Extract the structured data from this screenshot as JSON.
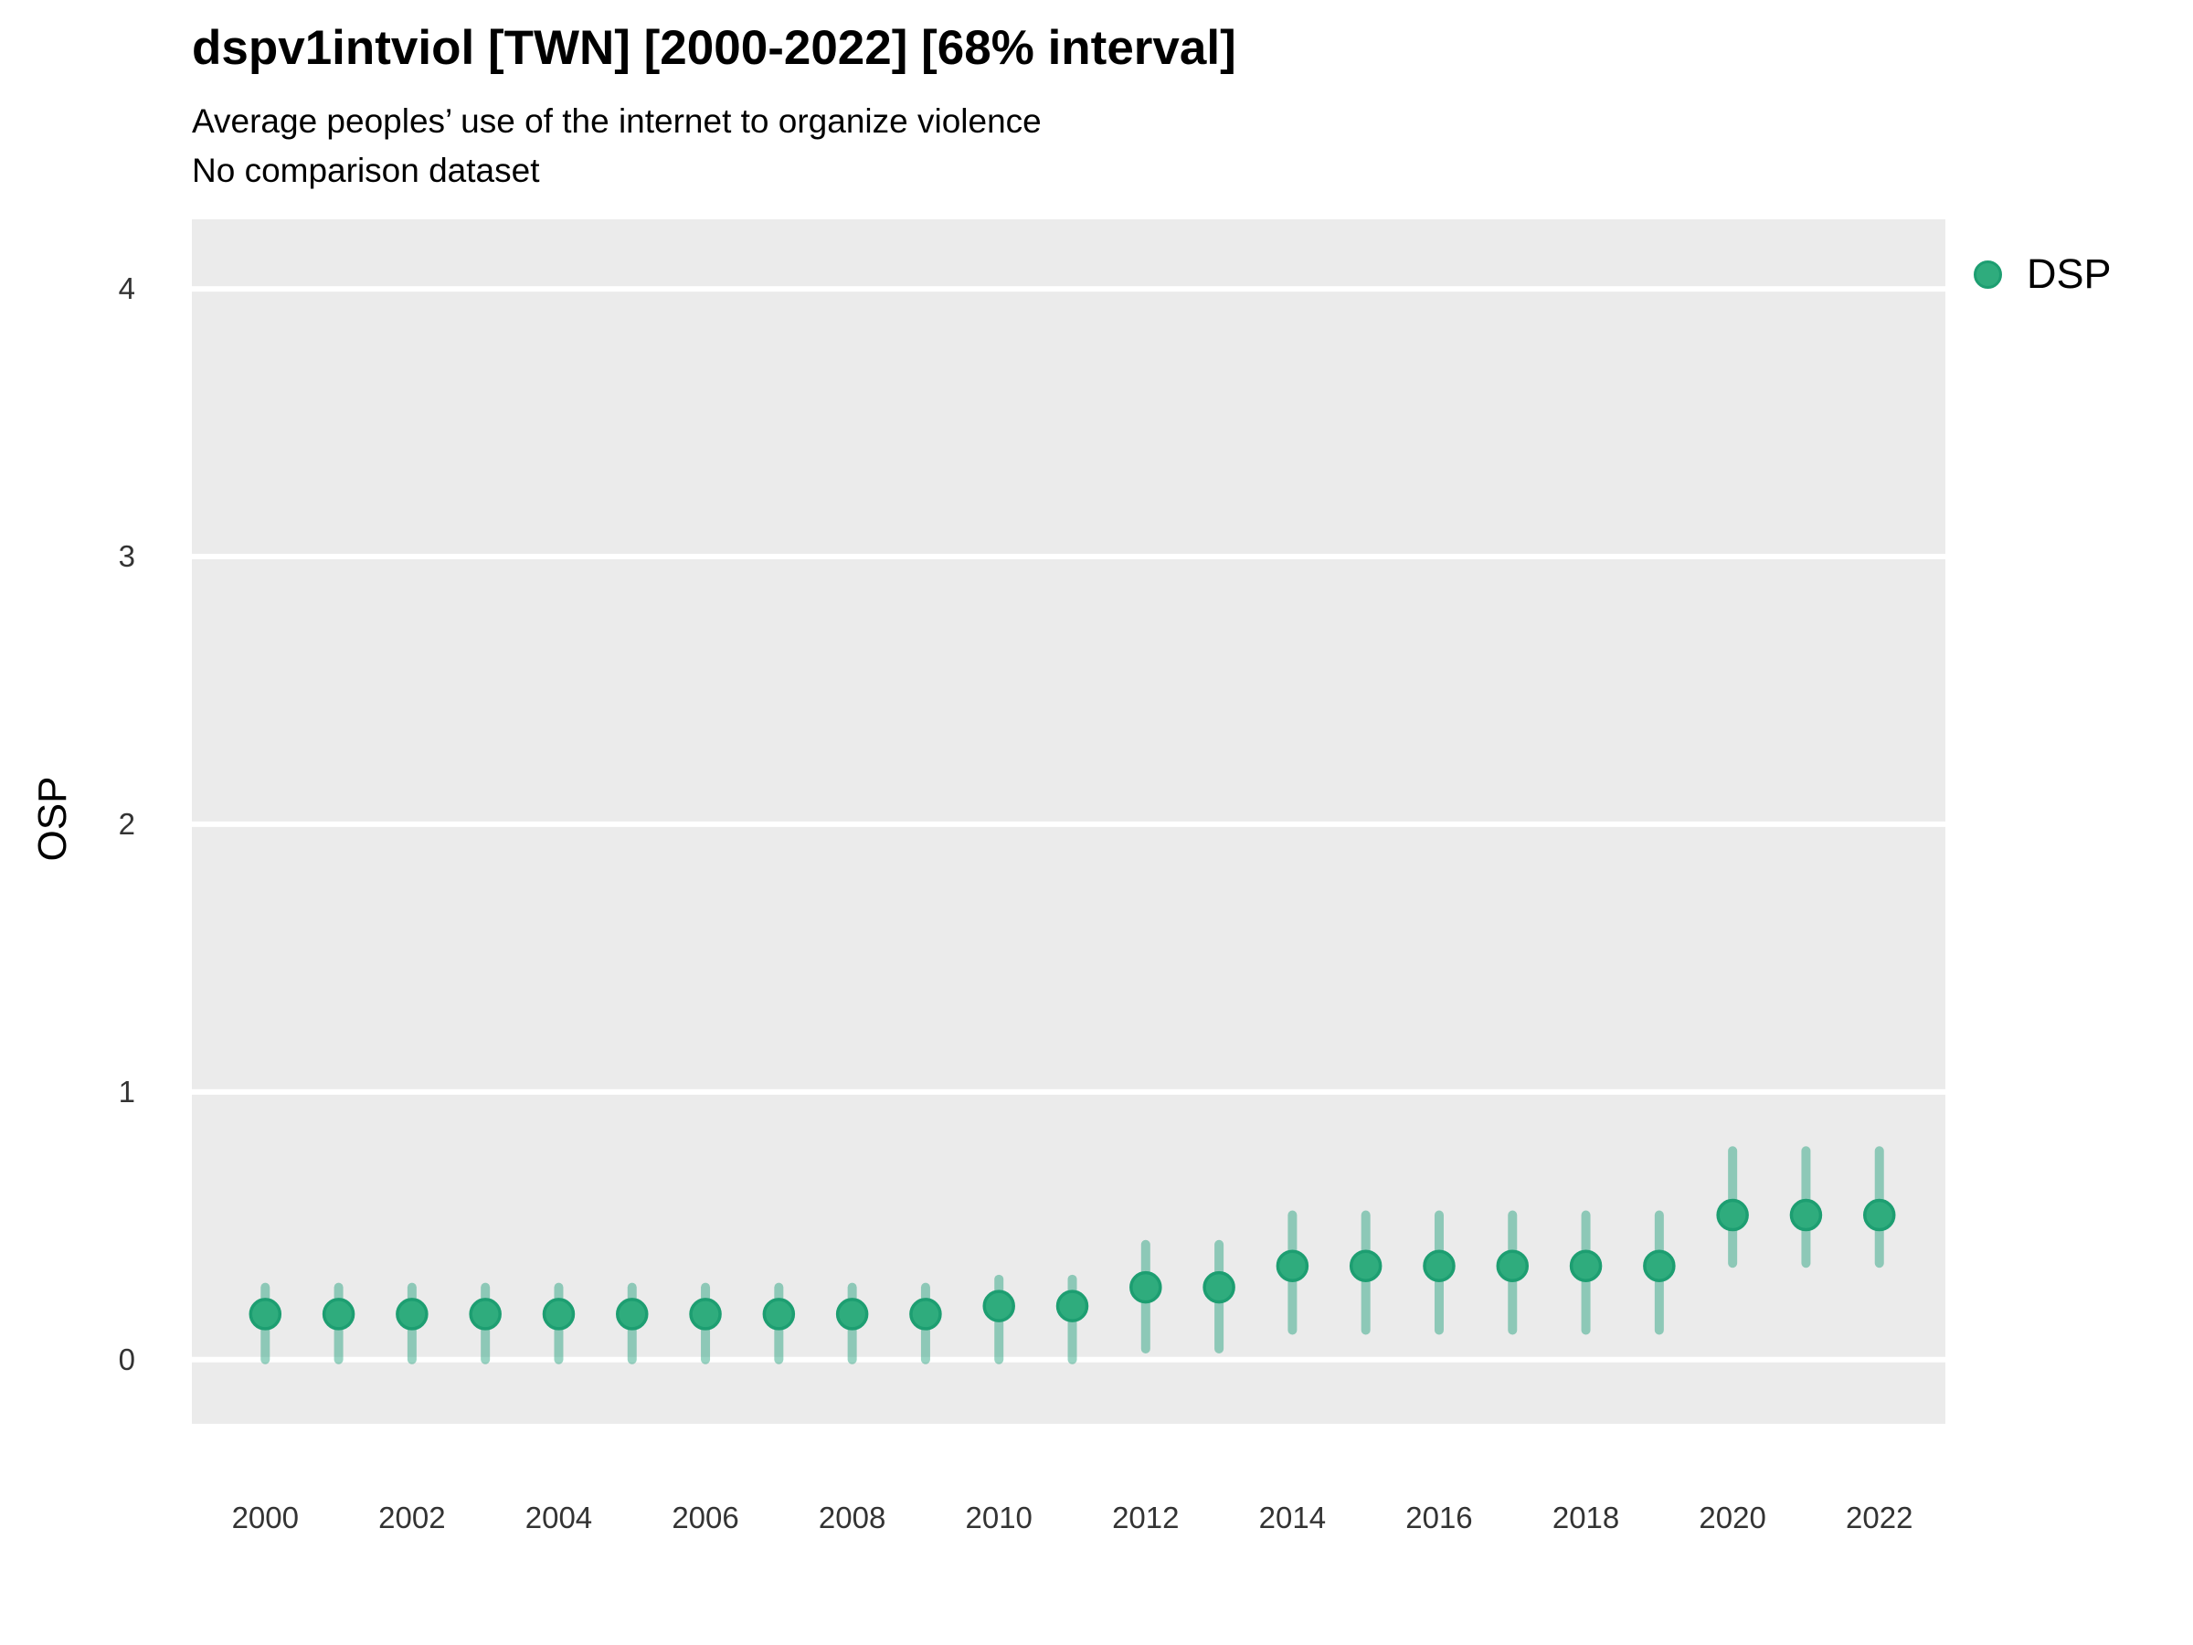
{
  "chart_data": {
    "type": "scatter",
    "variant": "point-interval",
    "title": "dspv1intviol [TWN] [2000-2022] [68% interval]",
    "subtitle": "Average peoples’ use of the internet to organize violence",
    "subtitle2": "No comparison dataset",
    "xlabel": "",
    "ylabel": "OSP",
    "interval_level": "68%",
    "x": [
      2000,
      2001,
      2002,
      2003,
      2004,
      2005,
      2006,
      2007,
      2008,
      2009,
      2010,
      2011,
      2012,
      2013,
      2014,
      2015,
      2016,
      2017,
      2018,
      2019,
      2020,
      2021,
      2022
    ],
    "series": [
      {
        "name": "DSP",
        "estimates": [
          0.17,
          0.17,
          0.17,
          0.17,
          0.17,
          0.17,
          0.17,
          0.17,
          0.17,
          0.17,
          0.2,
          0.2,
          0.27,
          0.27,
          0.35,
          0.35,
          0.35,
          0.35,
          0.35,
          0.35,
          0.54,
          0.54,
          0.54
        ],
        "interval_low": [
          0.0,
          0.0,
          0.0,
          0.0,
          0.0,
          0.0,
          0.0,
          0.0,
          0.0,
          0.0,
          0.0,
          0.0,
          0.04,
          0.04,
          0.11,
          0.11,
          0.11,
          0.11,
          0.11,
          0.11,
          0.36,
          0.36,
          0.36
        ],
        "interval_high": [
          0.27,
          0.27,
          0.27,
          0.27,
          0.27,
          0.27,
          0.27,
          0.27,
          0.27,
          0.27,
          0.3,
          0.3,
          0.43,
          0.43,
          0.54,
          0.54,
          0.54,
          0.54,
          0.54,
          0.54,
          0.78,
          0.78,
          0.78
        ]
      }
    ],
    "x_ticks": [
      2000,
      2002,
      2004,
      2006,
      2008,
      2010,
      2012,
      2014,
      2016,
      2018,
      2020,
      2022
    ],
    "y_ticks": [
      0,
      1,
      2,
      3,
      4
    ],
    "xlim": [
      1999.0,
      2022.9
    ],
    "ylim": [
      -0.24,
      4.26
    ],
    "grid": "horizontal-major-only",
    "legend": {
      "position": "top-right",
      "entries": [
        {
          "label": "DSP",
          "color": "#2FAC7D"
        }
      ]
    },
    "colors": {
      "point_fill": "#2FAC7D",
      "point_stroke": "#1D9E71",
      "interval": "rgba(27,158,119,0.45)",
      "panel_background": "#EBEBEB",
      "gridline": "#FFFFFF",
      "tick_label": "#333333",
      "text": "#000000"
    }
  }
}
